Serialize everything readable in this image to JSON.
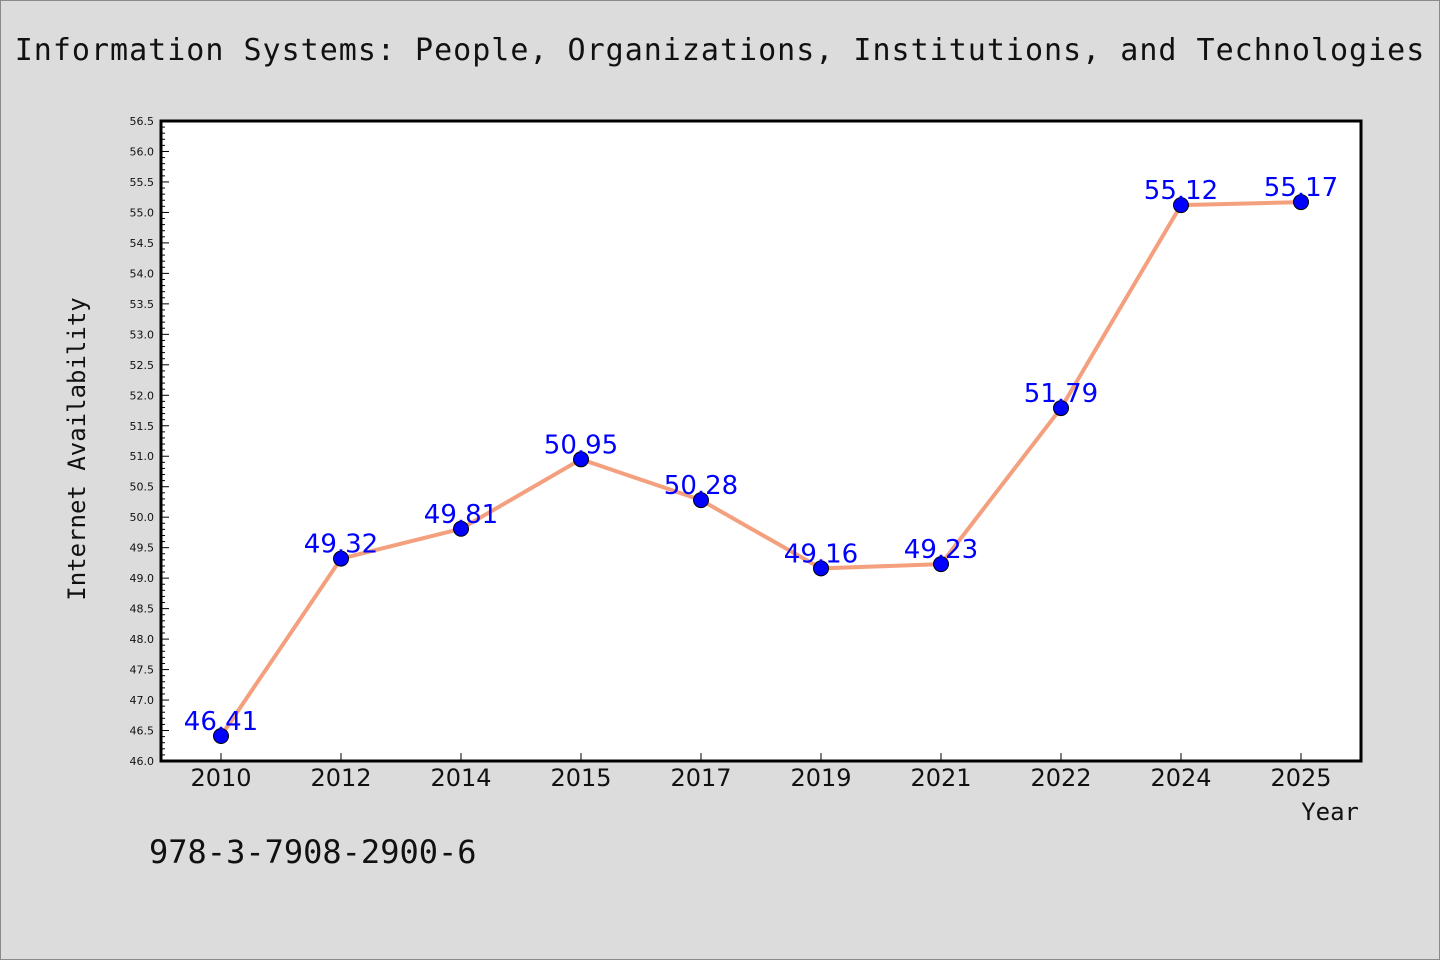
{
  "title": "Information Systems: People, Organizations, Institutions, and Technologies",
  "caption": "978-3-7908-2900-6",
  "colors": {
    "background": "#dcdcdc",
    "plot_background": "#ffffff",
    "line": "#f4a07e",
    "marker": "#0000ff",
    "data_label": "#0000ff"
  },
  "chart_data": {
    "type": "line",
    "title": "Information Systems: People, Organizations, Institutions, and Technologies",
    "xlabel": "Year",
    "ylabel": "Internet Availability",
    "categories": [
      "2010",
      "2012",
      "2014",
      "2015",
      "2017",
      "2019",
      "2021",
      "2022",
      "2024",
      "2025"
    ],
    "series": [
      {
        "values": [
          46.41,
          49.32,
          49.81,
          50.95,
          50.28,
          49.16,
          49.23,
          51.79,
          55.12,
          55.17
        ],
        "labels": [
          "46.41",
          "49.32",
          "49.81",
          "50.95",
          "50.28",
          "49.16",
          "49.23",
          "51.79",
          "55.12",
          "55.17"
        ]
      }
    ],
    "ylim": [
      46.0,
      56.5
    ],
    "yticks": [
      "46.0",
      "46.5",
      "47.0",
      "47.5",
      "48.0",
      "48.5",
      "49.0",
      "49.5",
      "50.0",
      "50.5",
      "51.0",
      "51.5",
      "52.0",
      "52.5",
      "53.0",
      "53.5",
      "54.0",
      "54.5",
      "55.0",
      "55.5",
      "56.0",
      "56.5"
    ],
    "grid": false,
    "legend": "none"
  }
}
